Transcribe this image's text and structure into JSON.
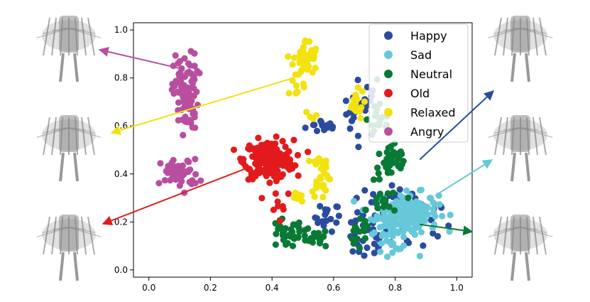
{
  "chart_data": {
    "type": "scatter",
    "xlim": [
      -0.05,
      1.05
    ],
    "ylim": [
      -0.03,
      1.03
    ],
    "xticks": [
      "0.0",
      "0.2",
      "0.4",
      "0.6",
      "0.8",
      "1.0"
    ],
    "yticks": [
      "0.0",
      "0.2",
      "0.4",
      "0.6",
      "0.8",
      "1.0"
    ],
    "grid": false,
    "legend_position": "top-right",
    "series": [
      {
        "name": "Happy",
        "color": "#2a4b9e",
        "clusters": [
          {
            "center": [
              0.57,
              0.6
            ],
            "spread": [
              0.03,
              0.015
            ],
            "count": 14
          },
          {
            "center": [
              0.69,
              0.67
            ],
            "spread": [
              0.03,
              0.06
            ],
            "count": 22
          },
          {
            "center": [
              0.58,
              0.22
            ],
            "spread": [
              0.02,
              0.03
            ],
            "count": 16
          },
          {
            "center": [
              0.7,
              0.15
            ],
            "spread": [
              0.04,
              0.06
            ],
            "count": 34
          },
          {
            "center": [
              0.86,
              0.2
            ],
            "spread": [
              0.06,
              0.07
            ],
            "count": 28
          },
          {
            "center": [
              0.77,
              0.31
            ],
            "spread": [
              0.03,
              0.02
            ],
            "count": 10
          }
        ]
      },
      {
        "name": "Sad",
        "color": "#66c8d8",
        "clusters": [
          {
            "center": [
              0.84,
              0.24
            ],
            "spread": [
              0.05,
              0.04
            ],
            "count": 150
          },
          {
            "center": [
              0.79,
              0.16
            ],
            "spread": [
              0.04,
              0.04
            ],
            "count": 45
          }
        ]
      },
      {
        "name": "Neutral",
        "color": "#087a35",
        "clusters": [
          {
            "center": [
              0.79,
              0.45
            ],
            "spread": [
              0.03,
              0.04
            ],
            "count": 38
          },
          {
            "center": [
              0.75,
              0.63
            ],
            "spread": [
              0.02,
              0.05
            ],
            "count": 18
          },
          {
            "center": [
              0.44,
              0.15
            ],
            "spread": [
              0.03,
              0.03
            ],
            "count": 26
          },
          {
            "center": [
              0.53,
              0.13
            ],
            "spread": [
              0.03,
              0.02
            ],
            "count": 22
          },
          {
            "center": [
              0.68,
              0.14
            ],
            "spread": [
              0.02,
              0.03
            ],
            "count": 14
          },
          {
            "center": [
              0.77,
              0.28
            ],
            "spread": [
              0.03,
              0.03
            ],
            "count": 16
          }
        ]
      },
      {
        "name": "Old",
        "color": "#e31a1c",
        "clusters": [
          {
            "center": [
              0.39,
              0.46
            ],
            "spread": [
              0.04,
              0.04
            ],
            "count": 200
          },
          {
            "center": [
              0.43,
              0.29
            ],
            "spread": [
              0.02,
              0.03
            ],
            "count": 8
          }
        ]
      },
      {
        "name": "Relaxed",
        "color": "#f3e20d",
        "clusters": [
          {
            "center": [
              0.51,
              0.88
            ],
            "spread": [
              0.02,
              0.04
            ],
            "count": 45
          },
          {
            "center": [
              0.48,
              0.76
            ],
            "spread": [
              0.01,
              0.02
            ],
            "count": 8
          },
          {
            "center": [
              0.56,
              0.4
            ],
            "spread": [
              0.015,
              0.05
            ],
            "count": 30
          },
          {
            "center": [
              0.67,
              0.69
            ],
            "spread": [
              0.015,
              0.03
            ],
            "count": 20
          },
          {
            "center": [
              0.52,
              0.64
            ],
            "spread": [
              0.01,
              0.01
            ],
            "count": 4
          },
          {
            "center": [
              0.48,
              0.3
            ],
            "spread": [
              0.01,
              0.02
            ],
            "count": 8
          }
        ]
      },
      {
        "name": "Angry",
        "color": "#b84f9e",
        "clusters": [
          {
            "center": [
              0.12,
              0.74
            ],
            "spread": [
              0.02,
              0.08
            ],
            "count": 95
          },
          {
            "center": [
              0.1,
              0.4
            ],
            "spread": [
              0.03,
              0.03
            ],
            "count": 55
          }
        ]
      }
    ]
  },
  "arrows": [
    {
      "color": "#b84f9e",
      "from": [
        0.1,
        0.84
      ]
    },
    {
      "color": "#f3e20d",
      "from": [
        0.47,
        0.8
      ]
    },
    {
      "color": "#e31a1c",
      "from": [
        0.33,
        0.43
      ]
    },
    {
      "color": "#2a4b9e",
      "from": [
        0.88,
        0.46
      ]
    },
    {
      "color": "#66c8d8",
      "from": [
        0.93,
        0.31
      ]
    },
    {
      "color": "#087a35",
      "from": [
        0.88,
        0.19
      ]
    }
  ],
  "thumbnails": [
    {
      "name": "angry-pose-image"
    },
    {
      "name": "relaxed-pose-image"
    },
    {
      "name": "old-pose-image"
    },
    {
      "name": "happy-pose-image"
    },
    {
      "name": "sad-pose-image"
    },
    {
      "name": "neutral-pose-image"
    }
  ]
}
